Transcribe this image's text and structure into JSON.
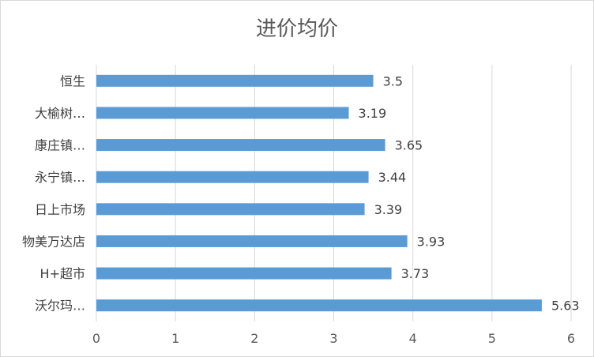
{
  "chart_data": {
    "type": "bar",
    "orientation": "horizontal",
    "title": "进价均价",
    "xlabel": "",
    "ylabel": "",
    "categories": [
      "恒生",
      "大榆树…",
      "康庄镇…",
      "永宁镇…",
      "日上市场",
      "物美万达店",
      "H+超市",
      "沃尔玛…"
    ],
    "values": [
      3.5,
      3.19,
      3.65,
      3.44,
      3.39,
      3.93,
      3.73,
      5.63
    ],
    "value_labels": [
      "3.5",
      "3.19",
      "3.65",
      "3.44",
      "3.39",
      "3.93",
      "3.73",
      "5.63"
    ],
    "xlim": [
      0,
      6
    ],
    "x_ticks": [
      "0",
      "1",
      "2",
      "3",
      "4",
      "5",
      "6"
    ],
    "grid": "vertical",
    "legend": "none",
    "bar_color": "#5b9bd5"
  }
}
